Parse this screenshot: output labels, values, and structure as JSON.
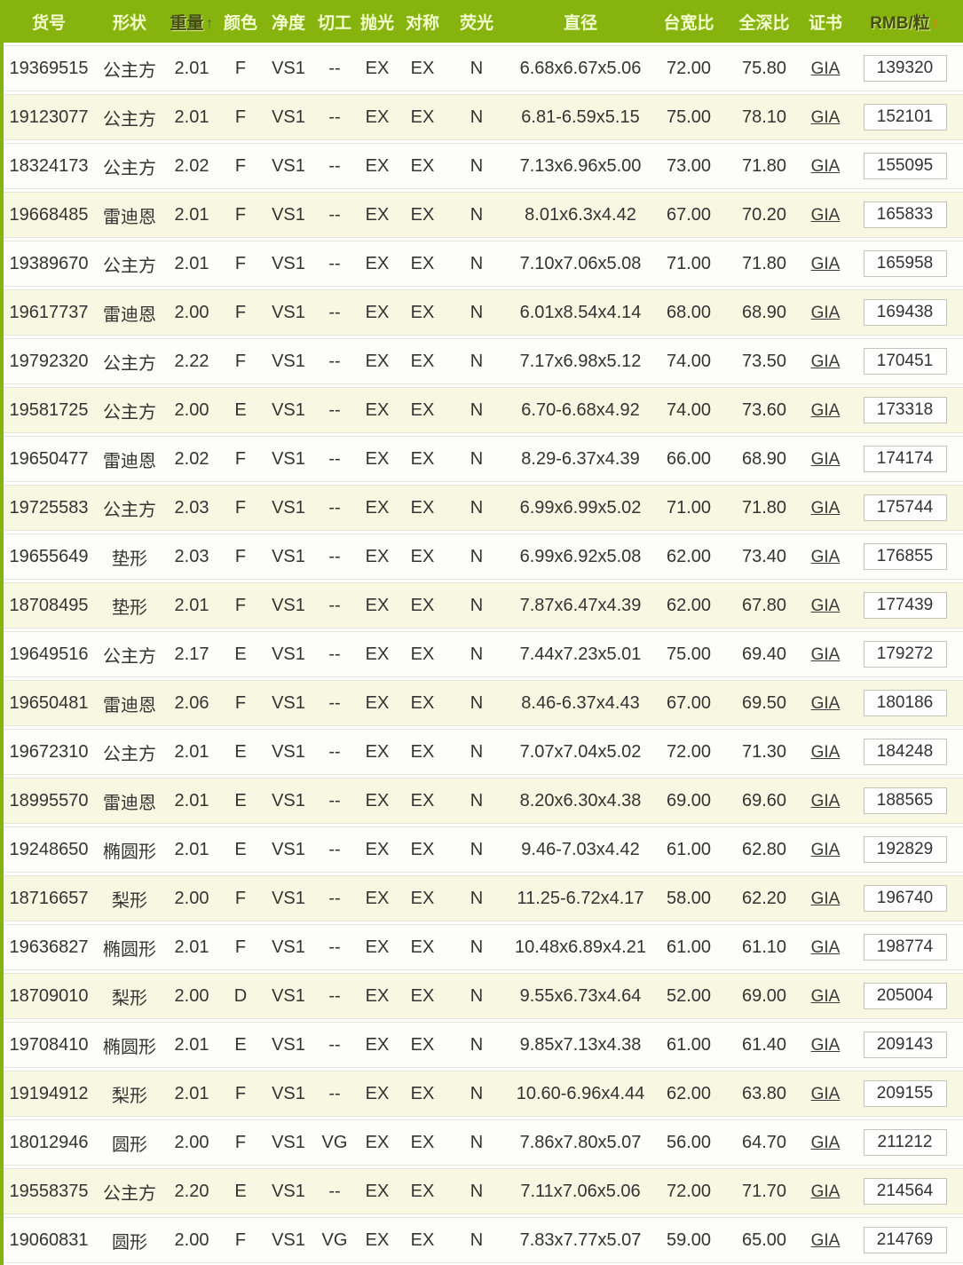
{
  "colors": {
    "header_bg": "#86b30d",
    "header_text": "#f4ffd0",
    "header_sorted_text": "#44500f",
    "sort_arrow_weight": "#5f6f2a",
    "sort_arrow_price": "#e87a1e",
    "row_bg": "#fdfdf9",
    "row_alt_bg": "#f8f8e2",
    "row_border": "#e6e6db",
    "price_box_border": "#c3c3ba",
    "link_color": "#3a3a3a"
  },
  "table": {
    "headers": [
      {
        "key": "item_no",
        "label": "货号",
        "sort": "",
        "arrow": ""
      },
      {
        "key": "shape",
        "label": "形状",
        "sort": "",
        "arrow": ""
      },
      {
        "key": "weight",
        "label": "重量",
        "sort": "asc",
        "arrow": "↑",
        "style": "dark"
      },
      {
        "key": "color",
        "label": "颜色",
        "sort": "",
        "arrow": ""
      },
      {
        "key": "clarity",
        "label": "净度",
        "sort": "",
        "arrow": ""
      },
      {
        "key": "cut",
        "label": "切工",
        "sort": "",
        "arrow": ""
      },
      {
        "key": "polish",
        "label": "抛光",
        "sort": "",
        "arrow": ""
      },
      {
        "key": "symmetry",
        "label": "对称",
        "sort": "",
        "arrow": ""
      },
      {
        "key": "fluorescence",
        "label": "荧光",
        "sort": "",
        "arrow": ""
      },
      {
        "key": "diameter",
        "label": "直径",
        "sort": "",
        "arrow": ""
      },
      {
        "key": "table_ratio",
        "label": "台宽比",
        "sort": "",
        "arrow": ""
      },
      {
        "key": "depth_ratio",
        "label": "全深比",
        "sort": "",
        "arrow": ""
      },
      {
        "key": "cert",
        "label": "证书",
        "sort": "",
        "arrow": ""
      },
      {
        "key": "price",
        "label": "RMB/粒",
        "sort": "asc",
        "arrow": "↑",
        "style": "orange"
      }
    ],
    "rows": [
      {
        "item_no": "19369515",
        "shape": "公主方",
        "weight": "2.01",
        "color": "F",
        "clarity": "VS1",
        "cut": "--",
        "polish": "EX",
        "symmetry": "EX",
        "fluorescence": "N",
        "diameter": "6.68x6.67x5.06",
        "table_ratio": "72.00",
        "depth_ratio": "75.80",
        "cert": "GIA",
        "price": "139320"
      },
      {
        "item_no": "19123077",
        "shape": "公主方",
        "weight": "2.01",
        "color": "F",
        "clarity": "VS1",
        "cut": "--",
        "polish": "EX",
        "symmetry": "EX",
        "fluorescence": "N",
        "diameter": "6.81-6.59x5.15",
        "table_ratio": "75.00",
        "depth_ratio": "78.10",
        "cert": "GIA",
        "price": "152101"
      },
      {
        "item_no": "18324173",
        "shape": "公主方",
        "weight": "2.02",
        "color": "F",
        "clarity": "VS1",
        "cut": "--",
        "polish": "EX",
        "symmetry": "EX",
        "fluorescence": "N",
        "diameter": "7.13x6.96x5.00",
        "table_ratio": "73.00",
        "depth_ratio": "71.80",
        "cert": "GIA",
        "price": "155095"
      },
      {
        "item_no": "19668485",
        "shape": "雷迪恩",
        "weight": "2.01",
        "color": "F",
        "clarity": "VS1",
        "cut": "--",
        "polish": "EX",
        "symmetry": "EX",
        "fluorescence": "N",
        "diameter": "8.01x6.3x4.42",
        "table_ratio": "67.00",
        "depth_ratio": "70.20",
        "cert": "GIA",
        "price": "165833"
      },
      {
        "item_no": "19389670",
        "shape": "公主方",
        "weight": "2.01",
        "color": "F",
        "clarity": "VS1",
        "cut": "--",
        "polish": "EX",
        "symmetry": "EX",
        "fluorescence": "N",
        "diameter": "7.10x7.06x5.08",
        "table_ratio": "71.00",
        "depth_ratio": "71.80",
        "cert": "GIA",
        "price": "165958"
      },
      {
        "item_no": "19617737",
        "shape": "雷迪恩",
        "weight": "2.00",
        "color": "F",
        "clarity": "VS1",
        "cut": "--",
        "polish": "EX",
        "symmetry": "EX",
        "fluorescence": "N",
        "diameter": "6.01x8.54x4.14",
        "table_ratio": "68.00",
        "depth_ratio": "68.90",
        "cert": "GIA",
        "price": "169438"
      },
      {
        "item_no": "19792320",
        "shape": "公主方",
        "weight": "2.22",
        "color": "F",
        "clarity": "VS1",
        "cut": "--",
        "polish": "EX",
        "symmetry": "EX",
        "fluorescence": "N",
        "diameter": "7.17x6.98x5.12",
        "table_ratio": "74.00",
        "depth_ratio": "73.50",
        "cert": "GIA",
        "price": "170451"
      },
      {
        "item_no": "19581725",
        "shape": "公主方",
        "weight": "2.00",
        "color": "E",
        "clarity": "VS1",
        "cut": "--",
        "polish": "EX",
        "symmetry": "EX",
        "fluorescence": "N",
        "diameter": "6.70-6.68x4.92",
        "table_ratio": "74.00",
        "depth_ratio": "73.60",
        "cert": "GIA",
        "price": "173318"
      },
      {
        "item_no": "19650477",
        "shape": "雷迪恩",
        "weight": "2.02",
        "color": "F",
        "clarity": "VS1",
        "cut": "--",
        "polish": "EX",
        "symmetry": "EX",
        "fluorescence": "N",
        "diameter": "8.29-6.37x4.39",
        "table_ratio": "66.00",
        "depth_ratio": "68.90",
        "cert": "GIA",
        "price": "174174"
      },
      {
        "item_no": "19725583",
        "shape": "公主方",
        "weight": "2.03",
        "color": "F",
        "clarity": "VS1",
        "cut": "--",
        "polish": "EX",
        "symmetry": "EX",
        "fluorescence": "N",
        "diameter": "6.99x6.99x5.02",
        "table_ratio": "71.00",
        "depth_ratio": "71.80",
        "cert": "GIA",
        "price": "175744"
      },
      {
        "item_no": "19655649",
        "shape": "垫形",
        "weight": "2.03",
        "color": "F",
        "clarity": "VS1",
        "cut": "--",
        "polish": "EX",
        "symmetry": "EX",
        "fluorescence": "N",
        "diameter": "6.99x6.92x5.08",
        "table_ratio": "62.00",
        "depth_ratio": "73.40",
        "cert": "GIA",
        "price": "176855"
      },
      {
        "item_no": "18708495",
        "shape": "垫形",
        "weight": "2.01",
        "color": "F",
        "clarity": "VS1",
        "cut": "--",
        "polish": "EX",
        "symmetry": "EX",
        "fluorescence": "N",
        "diameter": "7.87x6.47x4.39",
        "table_ratio": "62.00",
        "depth_ratio": "67.80",
        "cert": "GIA",
        "price": "177439"
      },
      {
        "item_no": "19649516",
        "shape": "公主方",
        "weight": "2.17",
        "color": "E",
        "clarity": "VS1",
        "cut": "--",
        "polish": "EX",
        "symmetry": "EX",
        "fluorescence": "N",
        "diameter": "7.44x7.23x5.01",
        "table_ratio": "75.00",
        "depth_ratio": "69.40",
        "cert": "GIA",
        "price": "179272"
      },
      {
        "item_no": "19650481",
        "shape": "雷迪恩",
        "weight": "2.06",
        "color": "F",
        "clarity": "VS1",
        "cut": "--",
        "polish": "EX",
        "symmetry": "EX",
        "fluorescence": "N",
        "diameter": "8.46-6.37x4.43",
        "table_ratio": "67.00",
        "depth_ratio": "69.50",
        "cert": "GIA",
        "price": "180186"
      },
      {
        "item_no": "19672310",
        "shape": "公主方",
        "weight": "2.01",
        "color": "E",
        "clarity": "VS1",
        "cut": "--",
        "polish": "EX",
        "symmetry": "EX",
        "fluorescence": "N",
        "diameter": "7.07x7.04x5.02",
        "table_ratio": "72.00",
        "depth_ratio": "71.30",
        "cert": "GIA",
        "price": "184248"
      },
      {
        "item_no": "18995570",
        "shape": "雷迪恩",
        "weight": "2.01",
        "color": "E",
        "clarity": "VS1",
        "cut": "--",
        "polish": "EX",
        "symmetry": "EX",
        "fluorescence": "N",
        "diameter": "8.20x6.30x4.38",
        "table_ratio": "69.00",
        "depth_ratio": "69.60",
        "cert": "GIA",
        "price": "188565"
      },
      {
        "item_no": "19248650",
        "shape": "椭圆形",
        "weight": "2.01",
        "color": "E",
        "clarity": "VS1",
        "cut": "--",
        "polish": "EX",
        "symmetry": "EX",
        "fluorescence": "N",
        "diameter": "9.46-7.03x4.42",
        "table_ratio": "61.00",
        "depth_ratio": "62.80",
        "cert": "GIA",
        "price": "192829"
      },
      {
        "item_no": "18716657",
        "shape": "梨形",
        "weight": "2.00",
        "color": "F",
        "clarity": "VS1",
        "cut": "--",
        "polish": "EX",
        "symmetry": "EX",
        "fluorescence": "N",
        "diameter": "11.25-6.72x4.17",
        "table_ratio": "58.00",
        "depth_ratio": "62.20",
        "cert": "GIA",
        "price": "196740"
      },
      {
        "item_no": "19636827",
        "shape": "椭圆形",
        "weight": "2.01",
        "color": "F",
        "clarity": "VS1",
        "cut": "--",
        "polish": "EX",
        "symmetry": "EX",
        "fluorescence": "N",
        "diameter": "10.48x6.89x4.21",
        "table_ratio": "61.00",
        "depth_ratio": "61.10",
        "cert": "GIA",
        "price": "198774"
      },
      {
        "item_no": "18709010",
        "shape": "梨形",
        "weight": "2.00",
        "color": "D",
        "clarity": "VS1",
        "cut": "--",
        "polish": "EX",
        "symmetry": "EX",
        "fluorescence": "N",
        "diameter": "9.55x6.73x4.64",
        "table_ratio": "52.00",
        "depth_ratio": "69.00",
        "cert": "GIA",
        "price": "205004"
      },
      {
        "item_no": "19708410",
        "shape": "椭圆形",
        "weight": "2.01",
        "color": "E",
        "clarity": "VS1",
        "cut": "--",
        "polish": "EX",
        "symmetry": "EX",
        "fluorescence": "N",
        "diameter": "9.85x7.13x4.38",
        "table_ratio": "61.00",
        "depth_ratio": "61.40",
        "cert": "GIA",
        "price": "209143"
      },
      {
        "item_no": "19194912",
        "shape": "梨形",
        "weight": "2.01",
        "color": "F",
        "clarity": "VS1",
        "cut": "--",
        "polish": "EX",
        "symmetry": "EX",
        "fluorescence": "N",
        "diameter": "10.60-6.96x4.44",
        "table_ratio": "62.00",
        "depth_ratio": "63.80",
        "cert": "GIA",
        "price": "209155"
      },
      {
        "item_no": "18012946",
        "shape": "圆形",
        "weight": "2.00",
        "color": "F",
        "clarity": "VS1",
        "cut": "VG",
        "polish": "EX",
        "symmetry": "EX",
        "fluorescence": "N",
        "diameter": "7.86x7.80x5.07",
        "table_ratio": "56.00",
        "depth_ratio": "64.70",
        "cert": "GIA",
        "price": "211212"
      },
      {
        "item_no": "19558375",
        "shape": "公主方",
        "weight": "2.20",
        "color": "E",
        "clarity": "VS1",
        "cut": "--",
        "polish": "EX",
        "symmetry": "EX",
        "fluorescence": "N",
        "diameter": "7.11x7.06x5.06",
        "table_ratio": "72.00",
        "depth_ratio": "71.70",
        "cert": "GIA",
        "price": "214564"
      },
      {
        "item_no": "19060831",
        "shape": "圆形",
        "weight": "2.00",
        "color": "F",
        "clarity": "VS1",
        "cut": "VG",
        "polish": "EX",
        "symmetry": "EX",
        "fluorescence": "N",
        "diameter": "7.83x7.77x5.07",
        "table_ratio": "59.00",
        "depth_ratio": "65.00",
        "cert": "GIA",
        "price": "214769"
      }
    ]
  }
}
